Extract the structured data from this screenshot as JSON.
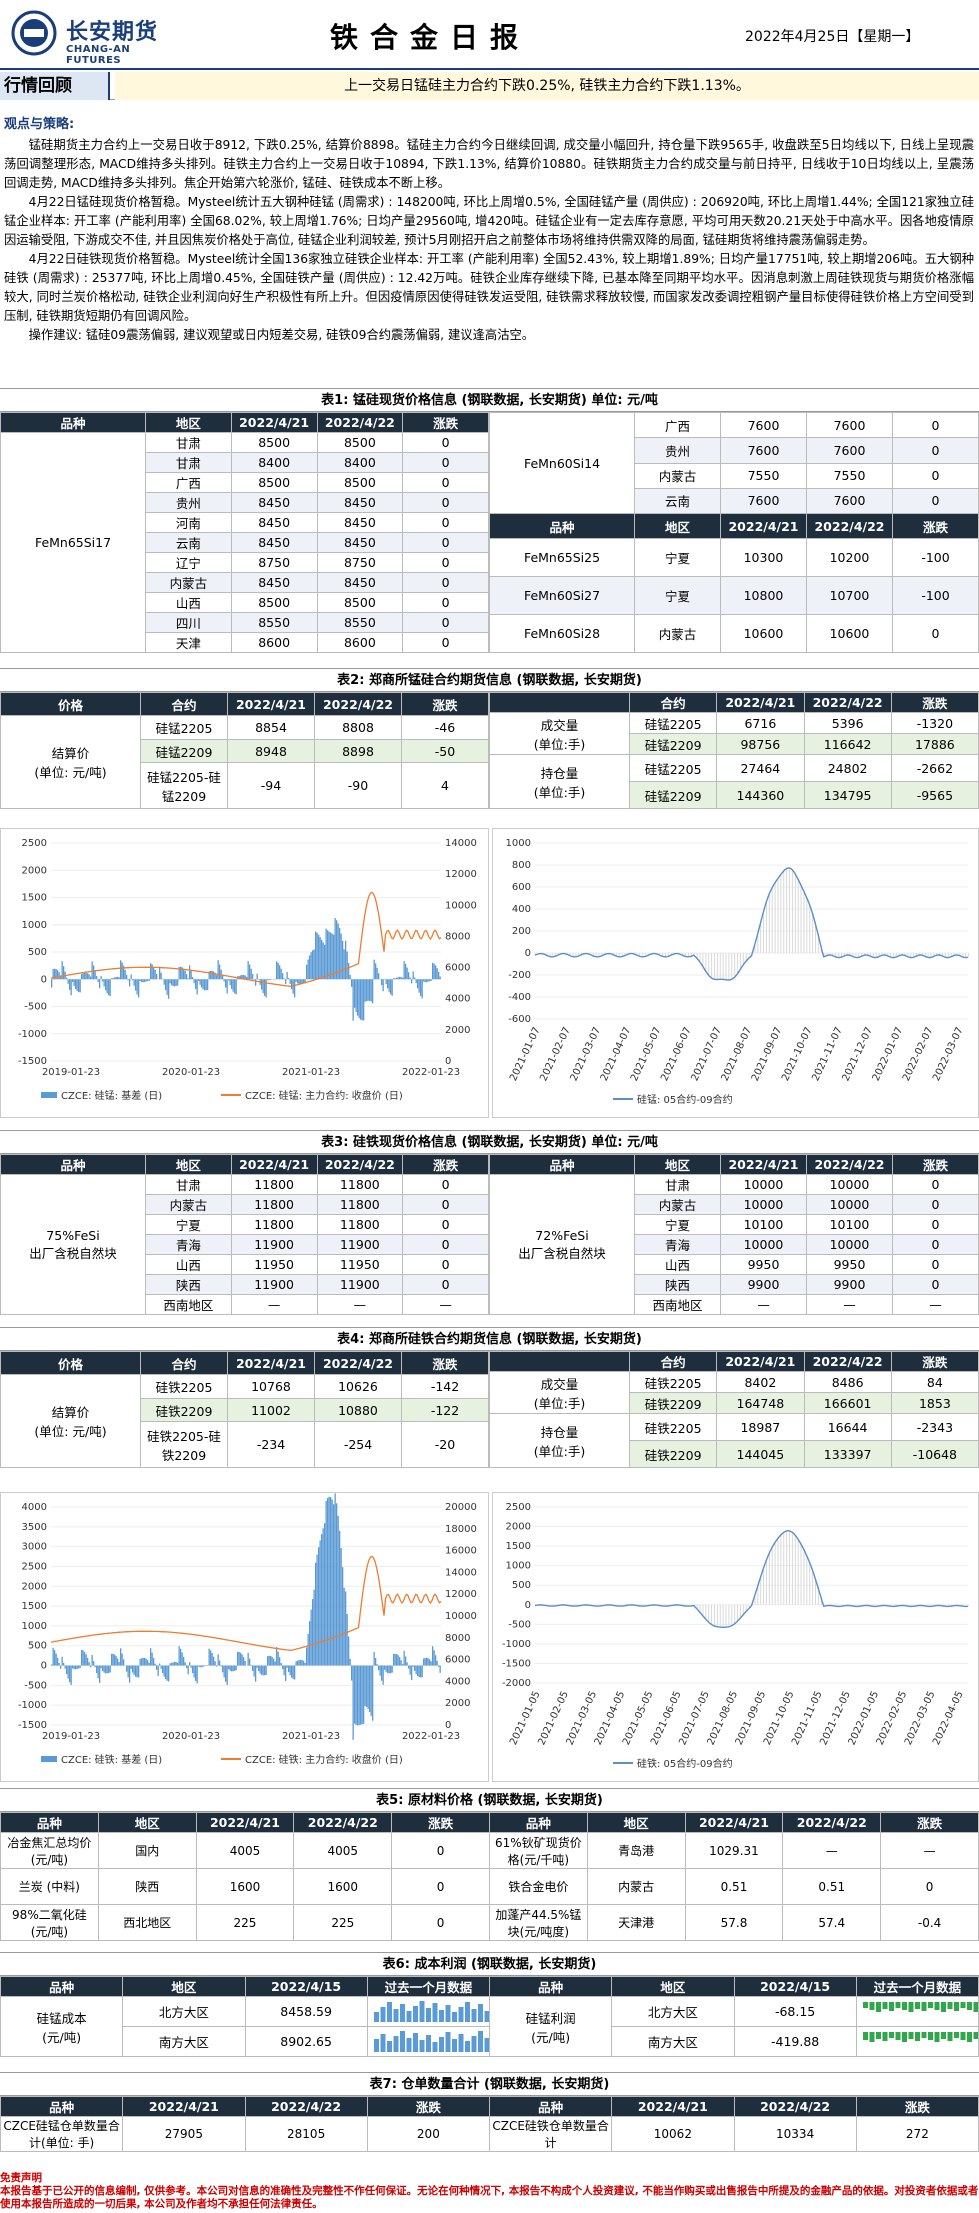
{
  "header": {
    "logo_cn": "长安期货",
    "logo_en": "CHANG-AN FUTURES",
    "title": "铁合金日报",
    "date": "2022年4月25日【星期一】"
  },
  "review": {
    "label": "行情回顾",
    "summary": "上一交易日锰硅主力合约下跌0.25%, 硅铁主力合约下跌1.13%。"
  },
  "strategy": {
    "title": "观点与策略:",
    "paras": [
      "锰硅期货主力合约上一交易日收于8912, 下跌0.25%, 结算价8898。锰硅主力合约今日继续回调, 成交量小幅回升, 持仓量下跌9565手, 收盘跌至5日均线以下, 日线上呈现震荡回调整理形态, MACD维持多头排列。硅铁主力合约上一交易日收于10894, 下跌1.13%, 结算价10880。硅铁期货主力合约成交量与前日持平, 日线收于10日均线以上, 呈震荡回调走势, MACD维持多头排列。焦企开始第六轮涨价, 锰硅、硅铁成本不断上移。",
      "4月22日锰硅现货价格暂稳。Mysteel统计五大钢种硅锰 (周需求) : 148200吨, 环比上周增0.5%, 全国硅锰产量 (周供应) : 206920吨, 环比上周增1.44%; 全国121家独立硅锰企业样本: 开工率 (产能利用率) 全国68.02%, 较上周增1.76%; 日均产量29560吨, 增420吨。硅锰企业有一定去库存意愿, 平均可用天数20.21天处于中高水平。因各地疫情原因运输受阻, 下游成交不佳, 并且因焦炭价格处于高位, 硅锰企业利润较差, 预计5月刚招开启之前整体市场将维持供需双降的局面, 锰硅期货将维持震荡偏弱走势。",
      "4月22日硅铁现货价格暂稳。Mysteel统计全国136家独立硅铁企业样本: 开工率 (产能利用率) 全国52.43%, 较上期增1.89%; 日均产量17751吨, 较上期增206吨。五大钢种硅铁 (周需求) : 25377吨, 环比上周增0.45%, 全国硅铁产量 (周供应) : 12.42万吨。硅铁企业库存继续下降, 已基本降至同期平均水平。因消息刺激上周硅铁现货与期货价格涨幅较大, 同时兰炭价格松动, 硅铁企业利润向好生产积极性有所上升。但因疫情原因使得硅铁发运受阻, 硅铁需求释放较慢, 而国家发改委调控粗钢产量目标使得硅铁价格上方空间受到压制, 硅铁期货短期仍有回调风险。",
      "操作建议: 锰硅09震荡偏弱, 建议观望或日内短差交易, 硅铁09合约震荡偏弱, 建议逢高沽空。"
    ]
  },
  "t1": {
    "cap": "表1: 锰硅现货价格信息 (钢联数据, 长安期货) 单位: 元/吨",
    "heads": [
      "品种",
      "地区",
      "2022/4/21",
      "2022/4/22",
      "涨跌"
    ],
    "left_name": "FeMn65Si17",
    "left": [
      [
        "甘肃",
        "8500",
        "8500",
        "0"
      ],
      [
        "甘肃",
        "8400",
        "8400",
        "0"
      ],
      [
        "广西",
        "8500",
        "8500",
        "0"
      ],
      [
        "贵州",
        "8450",
        "8450",
        "0"
      ],
      [
        "河南",
        "8450",
        "8450",
        "0"
      ],
      [
        "云南",
        "8450",
        "8450",
        "0"
      ],
      [
        "辽宁",
        "8750",
        "8750",
        "0"
      ],
      [
        "内蒙古",
        "8450",
        "8450",
        "0"
      ],
      [
        "山西",
        "8500",
        "8500",
        "0"
      ],
      [
        "四川",
        "8550",
        "8550",
        "0"
      ],
      [
        "天津",
        "8600",
        "8600",
        "0"
      ]
    ],
    "r1_name": "FeMn60Si14",
    "r1": [
      [
        "广西",
        "7600",
        "7600",
        "0"
      ],
      [
        "贵州",
        "7600",
        "7600",
        "0"
      ],
      [
        "内蒙古",
        "7550",
        "7550",
        "0"
      ],
      [
        "云南",
        "7600",
        "7600",
        "0"
      ]
    ],
    "r2": [
      [
        "FeMn65Si25",
        "宁夏",
        "10300",
        "10200",
        "-100"
      ],
      [
        "FeMn60Si27",
        "宁夏",
        "10800",
        "10700",
        "-100"
      ],
      [
        "FeMn60Si28",
        "内蒙古",
        "10600",
        "10600",
        "0"
      ]
    ]
  },
  "t2": {
    "cap": "表2: 郑商所锰硅合约期货信息 (钢联数据, 长安期货)",
    "heads": [
      "价格",
      "合约",
      "2022/4/21",
      "2022/4/22",
      "涨跌"
    ],
    "settle": "结算价",
    "settle_unit": "(单位: 元/吨)",
    "rows": [
      [
        "硅锰2205",
        "8854",
        "8808",
        "-46"
      ],
      [
        "硅锰2209",
        "8948",
        "8898",
        "-50"
      ],
      [
        "硅锰2205-硅锰2209",
        "-94",
        "-90",
        "4"
      ]
    ],
    "vol": "成交量",
    "vol_unit": "(单位:手)",
    "oi": "持仓量",
    "oi_unit": "(单位:手)",
    "vrows": [
      [
        "硅锰2205",
        "6716",
        "5396",
        "-1320"
      ],
      [
        "硅锰2209",
        "98756",
        "116642",
        "17886"
      ]
    ],
    "orows": [
      [
        "硅锰2205",
        "27464",
        "24802",
        "-2662"
      ],
      [
        "硅锰2209",
        "144360",
        "134795",
        "-9565"
      ]
    ]
  },
  "c1": {
    "left_ticks": [
      "2500",
      "2000",
      "1500",
      "1000",
      "500",
      "0",
      "-500",
      "-1000",
      "-1500"
    ],
    "right_ticks": [
      "14000",
      "12000",
      "10000",
      "8000",
      "6000",
      "4000",
      "2000",
      "0"
    ],
    "x_ticks": [
      "2019-01-23",
      "2020-01-23",
      "2021-01-23",
      "2022-01-23"
    ],
    "legend1": "CZCE: 硅锰: 基差 (日)",
    "legend2": "CZCE: 硅锰: 主力合约: 收盘价 (日)"
  },
  "c2": {
    "y_ticks": [
      "1000",
      "800",
      "600",
      "400",
      "200",
      "0",
      "-200",
      "-400",
      "-600"
    ],
    "x_ticks": [
      "2021-01-07",
      "2021-02-07",
      "2021-03-07",
      "2021-04-07",
      "2021-05-07",
      "2021-06-07",
      "2021-07-07",
      "2021-08-07",
      "2021-09-07",
      "2021-10-07",
      "2021-11-07",
      "2021-12-07",
      "2022-01-07",
      "2022-02-07",
      "2022-03-07"
    ],
    "legend": "硅锰: 05合约-09合约"
  },
  "t3": {
    "cap": "表3: 硅铁现货价格信息 (钢联数据, 长安期货) 单位: 元/吨",
    "heads": [
      "品种",
      "地区",
      "2022/4/21",
      "2022/4/22",
      "涨跌"
    ],
    "left_name": "75%FeSi",
    "left_sub": "出厂含税自然块",
    "left": [
      [
        "甘肃",
        "11800",
        "11800",
        "0"
      ],
      [
        "内蒙古",
        "11800",
        "11800",
        "0"
      ],
      [
        "宁夏",
        "11800",
        "11800",
        "0"
      ],
      [
        "青海",
        "11900",
        "11900",
        "0"
      ],
      [
        "山西",
        "11950",
        "11950",
        "0"
      ],
      [
        "陕西",
        "11900",
        "11900",
        "0"
      ],
      [
        "西南地区",
        "—",
        "—",
        "—"
      ]
    ],
    "right_name": "72%FeSi",
    "right_sub": "出厂含税自然块",
    "right": [
      [
        "甘肃",
        "10000",
        "10000",
        "0"
      ],
      [
        "内蒙古",
        "10000",
        "10000",
        "0"
      ],
      [
        "宁夏",
        "10100",
        "10100",
        "0"
      ],
      [
        "青海",
        "10000",
        "10000",
        "0"
      ],
      [
        "山西",
        "9950",
        "9950",
        "0"
      ],
      [
        "陕西",
        "9900",
        "9900",
        "0"
      ],
      [
        "西南地区",
        "—",
        "—",
        "—"
      ]
    ]
  },
  "t4": {
    "cap": "表4: 郑商所硅铁合约期货信息 (钢联数据, 长安期货)",
    "heads": [
      "价格",
      "合约",
      "2022/4/21",
      "2022/4/22",
      "涨跌"
    ],
    "settle": "结算价",
    "settle_unit": "(单位: 元/吨)",
    "rows": [
      [
        "硅铁2205",
        "10768",
        "10626",
        "-142"
      ],
      [
        "硅铁2209",
        "11002",
        "10880",
        "-122"
      ],
      [
        "硅铁2205-硅铁2209",
        "-234",
        "-254",
        "-20"
      ]
    ],
    "vol": "成交量",
    "vol_unit": "(单位:手)",
    "oi": "持仓量",
    "oi_unit": "(单位:手)",
    "vrows": [
      [
        "硅铁2205",
        "8402",
        "8486",
        "84"
      ],
      [
        "硅铁2209",
        "164748",
        "166601",
        "1853"
      ]
    ],
    "orows": [
      [
        "硅铁2205",
        "18987",
        "16644",
        "-2343"
      ],
      [
        "硅铁2209",
        "144045",
        "133397",
        "-10648"
      ]
    ]
  },
  "c3": {
    "left_ticks": [
      "4000",
      "3500",
      "3000",
      "2500",
      "2000",
      "1500",
      "1000",
      "500",
      "0",
      "-500",
      "-1000",
      "-1500"
    ],
    "right_ticks": [
      "20000",
      "18000",
      "16000",
      "14000",
      "12000",
      "10000",
      "8000",
      "6000",
      "4000",
      "2000",
      "0"
    ],
    "x_ticks": [
      "2019-01-23",
      "2020-01-23",
      "2021-01-23",
      "2022-01-23"
    ],
    "legend1": "CZCE: 硅铁: 基差 (日)",
    "legend2": "CZCE: 硅铁: 主力合约: 收盘价 (日)"
  },
  "c4": {
    "y_ticks": [
      "2500",
      "2000",
      "1500",
      "1000",
      "500",
      "0",
      "-500",
      "-1000",
      "-1500",
      "-2000"
    ],
    "x_ticks": [
      "2021-01-05",
      "2021-02-05",
      "2021-03-05",
      "2021-04-05",
      "2021-05-05",
      "2021-06-05",
      "2021-07-05",
      "2021-08-05",
      "2021-09-05",
      "2021-10-05",
      "2021-11-05",
      "2021-12-05",
      "2022-01-05",
      "2022-02-05",
      "2022-03-05",
      "2022-04-05"
    ],
    "legend": "硅铁: 05合约-09合约"
  },
  "t5": {
    "cap": "表5: 原材料价格 (钢联数据, 长安期货)",
    "heads": [
      "品种",
      "地区",
      "2022/4/21",
      "2022/4/22",
      "涨跌",
      "品种",
      "地区",
      "2022/4/21",
      "2022/4/22",
      "涨跌"
    ],
    "rows": [
      [
        "冶金焦汇总均价(元/吨)",
        "国内",
        "4005",
        "4005",
        "0",
        "61%钬矿现货价格(元/千吨)",
        "青岛港",
        "1029.31",
        "—",
        "—"
      ],
      [
        "兰炭 (中料)",
        "陕西",
        "1600",
        "1600",
        "0",
        "铁合金电价",
        "内蒙古",
        "0.51",
        "0.51",
        "0"
      ],
      [
        "98%二氧化硅(元/吨)",
        "西北地区",
        "225",
        "225",
        "0",
        "加蓬产44.5%锰块(元/吨度)",
        "天津港",
        "57.8",
        "57.4",
        "-0.4"
      ]
    ]
  },
  "t6": {
    "cap": "表6: 成本利润 (钢联数据, 长安期货)",
    "heads": [
      "品种",
      "地区",
      "2022/4/15",
      "过去一个月数据",
      "品种",
      "地区",
      "2022/4/15",
      "过去一个月数据"
    ],
    "lname": "硅锰成本",
    "lunit": "(元/吨)",
    "rname": "硅锰利润",
    "runit": "(元/吨)",
    "lrows": [
      [
        "北方大区",
        "8458.59"
      ],
      [
        "南方大区",
        "8902.65"
      ]
    ],
    "rrows": [
      [
        "北方大区",
        "-68.15"
      ],
      [
        "南方大区",
        "-419.88"
      ]
    ]
  },
  "t7": {
    "cap": "表7: 仓单数量合计 (钢联数据, 长安期货)",
    "heads": [
      "品种",
      "2022/4/21",
      "2022/4/22",
      "涨跌",
      "品种",
      "2022/4/21",
      "2022/4/22",
      "涨跌"
    ],
    "row": [
      "CZCE硅锰仓单数量合计(单位: 手)",
      "27905",
      "28105",
      "200",
      "CZCE硅铁仓单数量合计",
      "10062",
      "10334",
      "272"
    ]
  },
  "disclaimer": {
    "title": "免责声明",
    "text": "本报告基于已公开的信息编制, 仅供参考。本公司对信息的准确性及完整性不作任何保证。无论在何种情况下, 本报告不构成个人投资建议, 不能当作购买或出售报告中所提及的金融产品的依据。对投资者依据或者使用本报告所造成的一切后果, 本公司及作者均不承担任何法律责任。"
  },
  "colors": {
    "navy": "#1a3d7c",
    "bar": "#5b9bd5",
    "line": "#ed7d31",
    "header_dark": "#1f2e3d"
  }
}
